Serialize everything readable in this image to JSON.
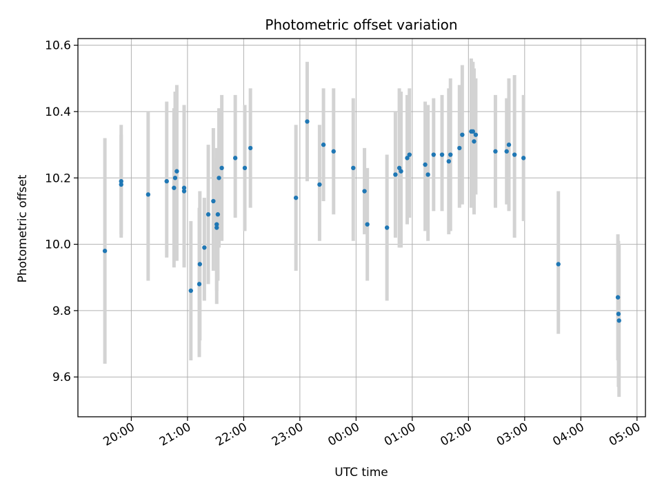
{
  "chart_data": {
    "type": "scatter",
    "title": "Photometric offset variation",
    "xlabel": "UTC time",
    "ylabel": "Photometric offset",
    "grid": true,
    "x_unit": "hours since 00:00 UTC",
    "xlim": [
      -4.95,
      5.15
    ],
    "ylim": [
      9.48,
      10.62
    ],
    "x_ticks": [
      -4,
      -3,
      -2,
      -1,
      0,
      1,
      2,
      3,
      4,
      5
    ],
    "x_tick_labels": [
      "20:00",
      "21:00",
      "22:00",
      "23:00",
      "00:00",
      "01:00",
      "02:00",
      "03:00",
      "04:00",
      "05:00"
    ],
    "y_ticks": [
      9.6,
      9.8,
      10.0,
      10.2,
      10.4,
      10.6
    ],
    "y_tick_labels": [
      "9.6",
      "9.8",
      "10.0",
      "10.2",
      "10.4",
      "10.6"
    ],
    "colors": {
      "point": "#1f77b4",
      "errorbar": "#d3d3d3",
      "grid": "#b0b0b0"
    },
    "points": [
      {
        "x": -4.47,
        "y": 9.98,
        "lo": 9.64,
        "hi": 10.32
      },
      {
        "x": -4.18,
        "y": 10.19,
        "lo": 10.02,
        "hi": 10.36
      },
      {
        "x": -4.18,
        "y": 10.18,
        "lo": 10.03,
        "hi": 10.33
      },
      {
        "x": -3.7,
        "y": 10.15,
        "lo": 9.89,
        "hi": 10.4
      },
      {
        "x": -3.37,
        "y": 10.19,
        "lo": 9.96,
        "hi": 10.43
      },
      {
        "x": -3.24,
        "y": 10.17,
        "lo": 9.93,
        "hi": 10.41
      },
      {
        "x": -3.22,
        "y": 10.2,
        "lo": 9.95,
        "hi": 10.46
      },
      {
        "x": -3.19,
        "y": 10.22,
        "lo": 9.95,
        "hi": 10.48
      },
      {
        "x": -3.06,
        "y": 10.17,
        "lo": 9.93,
        "hi": 10.42
      },
      {
        "x": -3.06,
        "y": 10.16,
        "lo": 9.95,
        "hi": 10.38
      },
      {
        "x": -2.94,
        "y": 9.86,
        "lo": 9.65,
        "hi": 10.07
      },
      {
        "x": -2.78,
        "y": 9.94,
        "lo": 9.71,
        "hi": 10.16
      },
      {
        "x": -2.79,
        "y": 9.88,
        "lo": 9.66,
        "hi": 10.11
      },
      {
        "x": -2.7,
        "y": 9.99,
        "lo": 9.83,
        "hi": 10.14
      },
      {
        "x": -2.63,
        "y": 10.09,
        "lo": 9.88,
        "hi": 10.3
      },
      {
        "x": -2.54,
        "y": 10.13,
        "lo": 9.92,
        "hi": 10.35
      },
      {
        "x": -2.48,
        "y": 10.06,
        "lo": 9.86,
        "hi": 10.26
      },
      {
        "x": -2.48,
        "y": 10.05,
        "lo": 9.82,
        "hi": 10.29
      },
      {
        "x": -2.46,
        "y": 10.09,
        "lo": 9.89,
        "hi": 10.29
      },
      {
        "x": -2.44,
        "y": 10.2,
        "lo": 9.99,
        "hi": 10.41
      },
      {
        "x": -2.39,
        "y": 10.23,
        "lo": 10.01,
        "hi": 10.45
      },
      {
        "x": -2.15,
        "y": 10.26,
        "lo": 10.08,
        "hi": 10.45
      },
      {
        "x": -1.98,
        "y": 10.23,
        "lo": 10.04,
        "hi": 10.42
      },
      {
        "x": -1.88,
        "y": 10.29,
        "lo": 10.11,
        "hi": 10.47
      },
      {
        "x": -1.07,
        "y": 10.14,
        "lo": 9.92,
        "hi": 10.36
      },
      {
        "x": -0.87,
        "y": 10.37,
        "lo": 10.19,
        "hi": 10.55
      },
      {
        "x": -0.65,
        "y": 10.18,
        "lo": 10.01,
        "hi": 10.36
      },
      {
        "x": -0.58,
        "y": 10.3,
        "lo": 10.13,
        "hi": 10.47
      },
      {
        "x": -0.4,
        "y": 10.28,
        "lo": 10.09,
        "hi": 10.47
      },
      {
        "x": -0.05,
        "y": 10.23,
        "lo": 10.01,
        "hi": 10.44
      },
      {
        "x": 0.15,
        "y": 10.16,
        "lo": 10.03,
        "hi": 10.29
      },
      {
        "x": 0.2,
        "y": 10.06,
        "lo": 9.89,
        "hi": 10.23
      },
      {
        "x": 0.55,
        "y": 10.05,
        "lo": 9.83,
        "hi": 10.27
      },
      {
        "x": 0.7,
        "y": 10.21,
        "lo": 10.02,
        "hi": 10.4
      },
      {
        "x": 0.77,
        "y": 10.23,
        "lo": 9.99,
        "hi": 10.47
      },
      {
        "x": 0.8,
        "y": 10.22,
        "lo": 9.99,
        "hi": 10.46
      },
      {
        "x": 0.91,
        "y": 10.26,
        "lo": 10.06,
        "hi": 10.45
      },
      {
        "x": 0.95,
        "y": 10.27,
        "lo": 10.08,
        "hi": 10.47
      },
      {
        "x": 1.23,
        "y": 10.24,
        "lo": 10.04,
        "hi": 10.43
      },
      {
        "x": 1.28,
        "y": 10.21,
        "lo": 10.01,
        "hi": 10.42
      },
      {
        "x": 1.38,
        "y": 10.27,
        "lo": 10.1,
        "hi": 10.44
      },
      {
        "x": 1.53,
        "y": 10.27,
        "lo": 10.1,
        "hi": 10.45
      },
      {
        "x": 1.65,
        "y": 10.25,
        "lo": 10.03,
        "hi": 10.47
      },
      {
        "x": 1.68,
        "y": 10.27,
        "lo": 10.04,
        "hi": 10.5
      },
      {
        "x": 1.84,
        "y": 10.29,
        "lo": 10.11,
        "hi": 10.48
      },
      {
        "x": 1.89,
        "y": 10.33,
        "lo": 10.12,
        "hi": 10.54
      },
      {
        "x": 2.05,
        "y": 10.34,
        "lo": 10.11,
        "hi": 10.56
      },
      {
        "x": 2.08,
        "y": 10.34,
        "lo": 10.12,
        "hi": 10.55
      },
      {
        "x": 2.1,
        "y": 10.31,
        "lo": 10.09,
        "hi": 10.53
      },
      {
        "x": 2.13,
        "y": 10.33,
        "lo": 10.15,
        "hi": 10.5
      },
      {
        "x": 2.48,
        "y": 10.28,
        "lo": 10.11,
        "hi": 10.45
      },
      {
        "x": 2.68,
        "y": 10.28,
        "lo": 10.12,
        "hi": 10.44
      },
      {
        "x": 2.72,
        "y": 10.3,
        "lo": 10.1,
        "hi": 10.5
      },
      {
        "x": 2.82,
        "y": 10.27,
        "lo": 10.02,
        "hi": 10.51
      },
      {
        "x": 2.98,
        "y": 10.26,
        "lo": 10.07,
        "hi": 10.45
      },
      {
        "x": 3.6,
        "y": 9.94,
        "lo": 9.73,
        "hi": 10.16
      },
      {
        "x": 4.66,
        "y": 9.84,
        "lo": 9.65,
        "hi": 10.03
      },
      {
        "x": 4.67,
        "y": 9.79,
        "lo": 9.57,
        "hi": 10.01
      },
      {
        "x": 4.68,
        "y": 9.77,
        "lo": 9.54,
        "hi": 10.0
      }
    ]
  }
}
